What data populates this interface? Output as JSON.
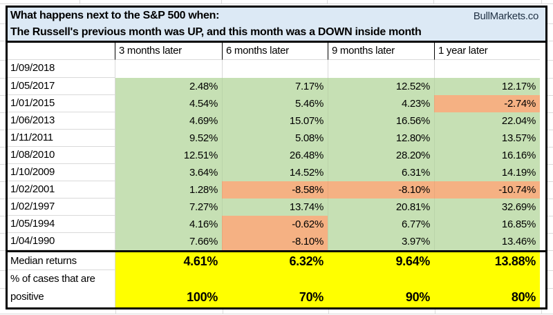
{
  "brand": "BullMarkets.co",
  "title": {
    "line1": "What happens next to the S&P 500 when:",
    "line2": "The Russell's previous month was UP, and this month was a DOWN inside month"
  },
  "columns": [
    "3 months later",
    "6 months later",
    "9 months later",
    "1 year later"
  ],
  "rows": [
    {
      "date": "1/09/2018",
      "values": [
        "",
        "",
        "",
        ""
      ],
      "fills": [
        "none",
        "none",
        "none",
        "none"
      ]
    },
    {
      "date": "1/05/2017",
      "values": [
        "2.48%",
        "7.17%",
        "12.52%",
        "12.17%"
      ],
      "fills": [
        "green",
        "green",
        "green",
        "green"
      ]
    },
    {
      "date": "1/01/2015",
      "values": [
        "4.54%",
        "5.46%",
        "4.23%",
        "-2.74%"
      ],
      "fills": [
        "green",
        "green",
        "green",
        "red"
      ]
    },
    {
      "date": "1/06/2013",
      "values": [
        "4.69%",
        "15.07%",
        "16.56%",
        "22.04%"
      ],
      "fills": [
        "green",
        "green",
        "green",
        "green"
      ]
    },
    {
      "date": "1/11/2011",
      "values": [
        "9.52%",
        "5.08%",
        "12.80%",
        "13.57%"
      ],
      "fills": [
        "green",
        "green",
        "green",
        "green"
      ]
    },
    {
      "date": "1/08/2010",
      "values": [
        "12.51%",
        "26.48%",
        "28.20%",
        "16.16%"
      ],
      "fills": [
        "green",
        "green",
        "green",
        "green"
      ]
    },
    {
      "date": "1/10/2009",
      "values": [
        "3.64%",
        "14.52%",
        "6.31%",
        "14.19%"
      ],
      "fills": [
        "green",
        "green",
        "green",
        "green"
      ]
    },
    {
      "date": "1/02/2001",
      "values": [
        "1.28%",
        "-8.58%",
        "-8.10%",
        "-10.74%"
      ],
      "fills": [
        "green",
        "red",
        "red",
        "red"
      ]
    },
    {
      "date": "1/02/1997",
      "values": [
        "7.27%",
        "13.74%",
        "20.81%",
        "32.69%"
      ],
      "fills": [
        "green",
        "green",
        "green",
        "green"
      ]
    },
    {
      "date": "1/05/1994",
      "values": [
        "4.16%",
        "-0.62%",
        "6.77%",
        "16.85%"
      ],
      "fills": [
        "green",
        "red",
        "green",
        "green"
      ]
    },
    {
      "date": "1/04/1990",
      "values": [
        "7.66%",
        "-8.10%",
        "3.97%",
        "13.46%"
      ],
      "fills": [
        "green",
        "red",
        "green",
        "green"
      ]
    }
  ],
  "summary": {
    "median_label": "Median returns",
    "median_values": [
      "4.61%",
      "6.32%",
      "9.64%",
      "13.88%"
    ],
    "positive_label_line1": "% of cases that are",
    "positive_label_line2": "positive",
    "positive_values": [
      "100%",
      "70%",
      "90%",
      "80%"
    ]
  },
  "colors": {
    "title_bg": "#dce9f5",
    "positive_fill": "#c6e0b4",
    "negative_fill": "#f5b183",
    "summary_fill": "#ffff00",
    "gridline": "#d9d9d9",
    "border": "#000000"
  }
}
